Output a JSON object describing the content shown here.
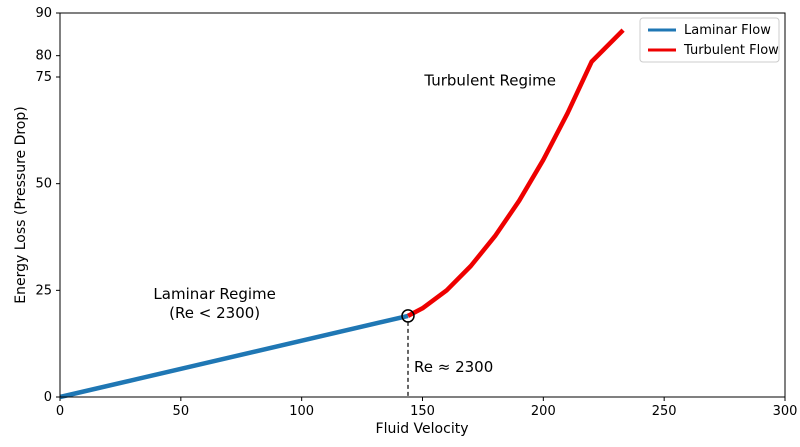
{
  "chart_data": {
    "type": "line",
    "xlabel": "Fluid Velocity",
    "ylabel": "Energy Loss (Pressure Drop)",
    "xlim": [
      0,
      300
    ],
    "ylim": [
      0,
      90
    ],
    "x_ticks": [
      0,
      50,
      100,
      150,
      200,
      250,
      300
    ],
    "y_ticks": [
      0,
      25,
      50,
      75,
      80,
      90
    ],
    "grid": false,
    "legend_position": "top-right",
    "series": [
      {
        "name": "Laminar Flow",
        "color": "#1f77b4",
        "x": [
          0,
          144
        ],
        "y": [
          0,
          19
        ]
      },
      {
        "name": "Turbulent Flow",
        "color": "#ee0000",
        "x": [
          144,
          150,
          160,
          170,
          180,
          190,
          200,
          210,
          220,
          233
        ],
        "y": [
          19,
          20.8,
          25,
          30.7,
          37.7,
          46,
          55.6,
          66.5,
          78.6,
          86
        ]
      }
    ],
    "transition_point": {
      "x": 144,
      "y": 19,
      "label": "Re ≈ 2300"
    },
    "annotations": [
      {
        "text": "Laminar Regime",
        "x": 64,
        "y": 23
      },
      {
        "text": "(Re < 2300)",
        "x": 64,
        "y": 18.5
      },
      {
        "text": "Turbulent Regime",
        "x": 178,
        "y": 73
      }
    ]
  }
}
